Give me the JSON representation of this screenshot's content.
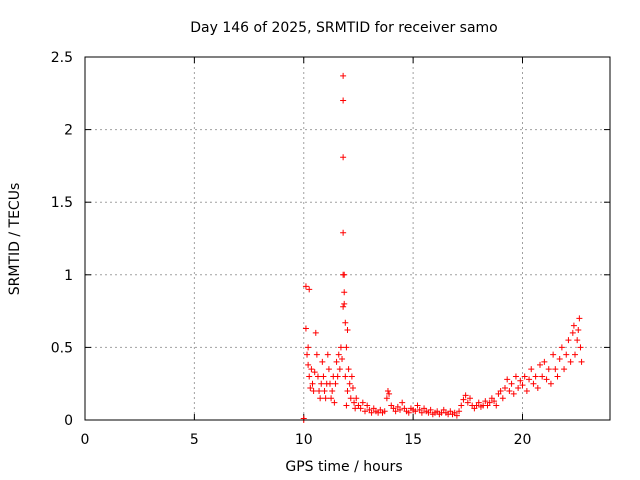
{
  "chart_data": {
    "type": "scatter",
    "title": "Day 146 of 2025, SRMTID for receiver samo",
    "xlabel": "GPS time / hours",
    "ylabel": "SRMTID / TECUs",
    "xlim": [
      0,
      24
    ],
    "ylim": [
      0,
      2.5
    ],
    "xticks": [
      0,
      5,
      10,
      15,
      20
    ],
    "xtick_labels": [
      "0",
      "5",
      "10",
      "15",
      "20"
    ],
    "yticks": [
      0,
      0.5,
      1,
      1.5,
      2,
      2.5
    ],
    "ytick_labels": [
      "0",
      "0.5",
      "1",
      "1.5",
      "2",
      "2.5"
    ],
    "grid": true,
    "marker": "+",
    "series": [
      {
        "color": "#ff0000",
        "points": [
          [
            10.0,
            0.0
          ],
          [
            10.0,
            0.01
          ],
          [
            10.1,
            0.92
          ],
          [
            10.1,
            0.63
          ],
          [
            10.15,
            0.45
          ],
          [
            10.2,
            0.5
          ],
          [
            10.25,
            0.9
          ],
          [
            10.2,
            0.38
          ],
          [
            10.25,
            0.3
          ],
          [
            10.3,
            0.22
          ],
          [
            10.35,
            0.35
          ],
          [
            10.4,
            0.25
          ],
          [
            10.45,
            0.2
          ],
          [
            10.5,
            0.33
          ],
          [
            10.55,
            0.6
          ],
          [
            10.6,
            0.45
          ],
          [
            10.65,
            0.3
          ],
          [
            10.7,
            0.2
          ],
          [
            10.75,
            0.15
          ],
          [
            10.8,
            0.25
          ],
          [
            10.85,
            0.4
          ],
          [
            10.9,
            0.3
          ],
          [
            10.95,
            0.2
          ],
          [
            11.0,
            0.15
          ],
          [
            11.05,
            0.25
          ],
          [
            11.1,
            0.45
          ],
          [
            11.15,
            0.35
          ],
          [
            11.2,
            0.25
          ],
          [
            11.25,
            0.15
          ],
          [
            11.3,
            0.2
          ],
          [
            11.35,
            0.3
          ],
          [
            11.4,
            0.12
          ],
          [
            11.45,
            0.25
          ],
          [
            11.5,
            0.4
          ],
          [
            11.55,
            0.3
          ],
          [
            11.6,
            0.45
          ],
          [
            11.65,
            0.35
          ],
          [
            11.7,
            0.5
          ],
          [
            11.75,
            0.42
          ],
          [
            11.8,
            2.37
          ],
          [
            11.8,
            2.2
          ],
          [
            11.8,
            1.81
          ],
          [
            11.8,
            1.29
          ],
          [
            11.8,
            1.0
          ],
          [
            11.85,
            1.0
          ],
          [
            11.85,
            0.88
          ],
          [
            11.85,
            0.8
          ],
          [
            11.8,
            0.78
          ],
          [
            11.9,
            0.67
          ],
          [
            11.95,
            0.5
          ],
          [
            12.0,
            0.62
          ],
          [
            11.9,
            0.3
          ],
          [
            11.95,
            0.1
          ],
          [
            12.0,
            0.2
          ],
          [
            12.05,
            0.35
          ],
          [
            12.1,
            0.25
          ],
          [
            12.15,
            0.15
          ],
          [
            12.2,
            0.3
          ],
          [
            12.25,
            0.22
          ],
          [
            12.3,
            0.12
          ],
          [
            12.35,
            0.08
          ],
          [
            12.4,
            0.15
          ],
          [
            12.5,
            0.1
          ],
          [
            12.6,
            0.08
          ],
          [
            12.7,
            0.12
          ],
          [
            12.8,
            0.06
          ],
          [
            12.9,
            0.1
          ],
          [
            13.0,
            0.07
          ],
          [
            13.1,
            0.05
          ],
          [
            13.2,
            0.08
          ],
          [
            13.3,
            0.06
          ],
          [
            13.4,
            0.05
          ],
          [
            13.5,
            0.07
          ],
          [
            13.6,
            0.05
          ],
          [
            13.7,
            0.06
          ],
          [
            13.8,
            0.15
          ],
          [
            13.85,
            0.2
          ],
          [
            13.9,
            0.18
          ],
          [
            14.0,
            0.1
          ],
          [
            14.1,
            0.08
          ],
          [
            14.2,
            0.06
          ],
          [
            14.3,
            0.09
          ],
          [
            14.4,
            0.07
          ],
          [
            14.5,
            0.12
          ],
          [
            14.6,
            0.08
          ],
          [
            14.7,
            0.06
          ],
          [
            14.8,
            0.05
          ],
          [
            14.9,
            0.08
          ],
          [
            15.0,
            0.07
          ],
          [
            15.1,
            0.06
          ],
          [
            15.2,
            0.1
          ],
          [
            15.3,
            0.07
          ],
          [
            15.4,
            0.05
          ],
          [
            15.5,
            0.08
          ],
          [
            15.6,
            0.06
          ],
          [
            15.7,
            0.05
          ],
          [
            15.8,
            0.07
          ],
          [
            15.9,
            0.04
          ],
          [
            16.0,
            0.05
          ],
          [
            16.1,
            0.06
          ],
          [
            16.2,
            0.04
          ],
          [
            16.3,
            0.05
          ],
          [
            16.4,
            0.07
          ],
          [
            16.5,
            0.05
          ],
          [
            16.6,
            0.04
          ],
          [
            16.7,
            0.06
          ],
          [
            16.8,
            0.04
          ],
          [
            16.9,
            0.05
          ],
          [
            17.0,
            0.03
          ],
          [
            17.1,
            0.06
          ],
          [
            17.2,
            0.1
          ],
          [
            17.3,
            0.14
          ],
          [
            17.4,
            0.17
          ],
          [
            17.5,
            0.12
          ],
          [
            17.6,
            0.15
          ],
          [
            17.7,
            0.1
          ],
          [
            17.8,
            0.08
          ],
          [
            17.9,
            0.1
          ],
          [
            18.0,
            0.12
          ],
          [
            18.1,
            0.09
          ],
          [
            18.2,
            0.1
          ],
          [
            18.3,
            0.13
          ],
          [
            18.4,
            0.1
          ],
          [
            18.5,
            0.12
          ],
          [
            18.6,
            0.15
          ],
          [
            18.7,
            0.13
          ],
          [
            18.8,
            0.1
          ],
          [
            18.9,
            0.18
          ],
          [
            19.0,
            0.2
          ],
          [
            19.1,
            0.15
          ],
          [
            19.2,
            0.22
          ],
          [
            19.3,
            0.28
          ],
          [
            19.4,
            0.2
          ],
          [
            19.5,
            0.25
          ],
          [
            19.6,
            0.18
          ],
          [
            19.7,
            0.3
          ],
          [
            19.8,
            0.22
          ],
          [
            19.9,
            0.27
          ],
          [
            20.0,
            0.24
          ],
          [
            20.1,
            0.3
          ],
          [
            20.2,
            0.2
          ],
          [
            20.3,
            0.28
          ],
          [
            20.4,
            0.35
          ],
          [
            20.5,
            0.25
          ],
          [
            20.6,
            0.3
          ],
          [
            20.7,
            0.22
          ],
          [
            20.8,
            0.38
          ],
          [
            20.9,
            0.3
          ],
          [
            21.0,
            0.4
          ],
          [
            21.1,
            0.28
          ],
          [
            21.2,
            0.35
          ],
          [
            21.3,
            0.25
          ],
          [
            21.4,
            0.45
          ],
          [
            21.5,
            0.35
          ],
          [
            21.6,
            0.3
          ],
          [
            21.7,
            0.42
          ],
          [
            21.8,
            0.5
          ],
          [
            21.9,
            0.35
          ],
          [
            22.0,
            0.45
          ],
          [
            22.1,
            0.55
          ],
          [
            22.2,
            0.4
          ],
          [
            22.3,
            0.6
          ],
          [
            22.35,
            0.65
          ],
          [
            22.4,
            0.45
          ],
          [
            22.5,
            0.55
          ],
          [
            22.55,
            0.62
          ],
          [
            22.6,
            0.7
          ],
          [
            22.65,
            0.5
          ],
          [
            22.7,
            0.4
          ]
        ]
      }
    ]
  }
}
